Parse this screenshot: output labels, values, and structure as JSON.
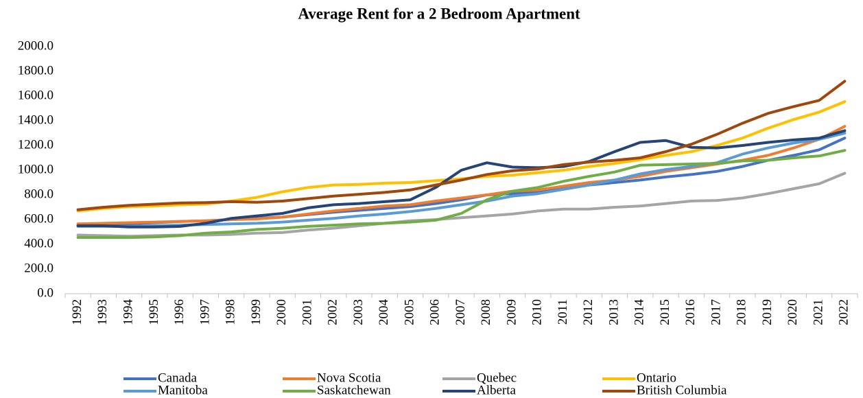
{
  "chart_data": {
    "type": "line",
    "title": "Average Rent for a 2 Bedroom Apartment",
    "categories": [
      "1992",
      "1993",
      "1994",
      "1995",
      "1996",
      "1997",
      "1998",
      "1999",
      "2000",
      "2001",
      "2002",
      "2003",
      "2004",
      "2005",
      "2006",
      "2007",
      "2008",
      "2009",
      "2010",
      "2011",
      "2012",
      "2013",
      "2014",
      "2015",
      "2016",
      "2017",
      "2018",
      "2019",
      "2020",
      "2021",
      "2022"
    ],
    "series": [
      {
        "name": "Canada",
        "color": "#4472c4",
        "values": [
          555,
          560,
          565,
          575,
          585,
          590,
          600,
          610,
          620,
          640,
          660,
          675,
          690,
          705,
          730,
          760,
          800,
          810,
          820,
          850,
          880,
          900,
          920,
          945,
          965,
          990,
          1030,
          1080,
          1120,
          1165,
          1260
        ]
      },
      {
        "name": "Nova Scotia",
        "color": "#ed7d31",
        "values": [
          565,
          570,
          575,
          580,
          585,
          590,
          600,
          605,
          620,
          645,
          670,
          690,
          710,
          720,
          750,
          775,
          800,
          830,
          840,
          870,
          900,
          920,
          950,
          990,
          1020,
          1050,
          1080,
          1120,
          1180,
          1250,
          1355
        ]
      },
      {
        "name": "Quebec",
        "color": "#a5a5a5",
        "values": [
          475,
          470,
          465,
          470,
          475,
          475,
          480,
          490,
          495,
          515,
          530,
          550,
          570,
          590,
          600,
          615,
          630,
          645,
          670,
          685,
          685,
          700,
          710,
          730,
          750,
          755,
          775,
          810,
          850,
          890,
          975
        ]
      },
      {
        "name": "Ontario",
        "color": "#ffc000",
        "values": [
          670,
          690,
          705,
          710,
          720,
          725,
          750,
          780,
          825,
          860,
          880,
          885,
          895,
          900,
          915,
          930,
          950,
          960,
          980,
          1000,
          1030,
          1055,
          1085,
          1120,
          1150,
          1200,
          1260,
          1340,
          1410,
          1470,
          1555
        ]
      },
      {
        "name": "Manitoba",
        "color": "#5b9bd5",
        "values": [
          545,
          545,
          545,
          550,
          555,
          560,
          565,
          570,
          580,
          595,
          610,
          630,
          645,
          665,
          690,
          720,
          750,
          790,
          810,
          845,
          880,
          920,
          970,
          1005,
          1030,
          1060,
          1130,
          1180,
          1220,
          1250,
          1300
        ]
      },
      {
        "name": "Saskatchewan",
        "color": "#70ad47",
        "values": [
          455,
          455,
          455,
          460,
          470,
          490,
          500,
          520,
          530,
          545,
          555,
          565,
          570,
          580,
          595,
          650,
          760,
          830,
          860,
          910,
          950,
          985,
          1040,
          1045,
          1050,
          1055,
          1075,
          1080,
          1100,
          1115,
          1160
        ]
      },
      {
        "name": "Alberta",
        "color": "#264478",
        "values": [
          550,
          550,
          540,
          540,
          545,
          570,
          610,
          630,
          650,
          695,
          720,
          730,
          745,
          760,
          860,
          1000,
          1060,
          1025,
          1020,
          1030,
          1070,
          1150,
          1225,
          1240,
          1185,
          1180,
          1200,
          1225,
          1245,
          1260,
          1320
        ]
      },
      {
        "name": "British Columbia",
        "color": "#9e480e",
        "values": [
          680,
          700,
          715,
          725,
          735,
          738,
          745,
          740,
          750,
          770,
          790,
          805,
          820,
          840,
          880,
          920,
          965,
          995,
          1010,
          1045,
          1065,
          1080,
          1100,
          1150,
          1210,
          1290,
          1380,
          1460,
          1515,
          1565,
          1720
        ]
      }
    ],
    "ylim": [
      0,
      2000
    ],
    "yticks": [
      {
        "value": 0,
        "label": "0.0"
      },
      {
        "value": 200,
        "label": "200.0"
      },
      {
        "value": 400,
        "label": "400.0"
      },
      {
        "value": 600,
        "label": "600.0"
      },
      {
        "value": 800,
        "label": "800.0"
      },
      {
        "value": 1000,
        "label": "1000.0"
      },
      {
        "value": 1200,
        "label": "1200.0"
      },
      {
        "value": 1400,
        "label": "1400.0"
      },
      {
        "value": 1600,
        "label": "1600.0"
      },
      {
        "value": 1800,
        "label": "1800.0"
      },
      {
        "value": 2000,
        "label": "2000.0"
      }
    ],
    "grid": false,
    "legend": "bottom"
  }
}
